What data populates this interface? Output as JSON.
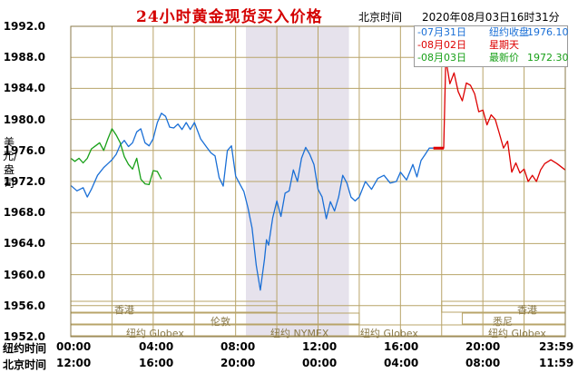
{
  "header": {
    "title": "24小时黄金现货买入价格",
    "beijing_label": "北京时间",
    "timestamp": "2020年08月03日16时31分"
  },
  "y_axis_label": "美元/盎司",
  "legend": [
    {
      "date": "-07月31日",
      "name": "纽约收盘",
      "value": "1976.10",
      "color": "#1a6fd6"
    },
    {
      "date": "-08月02日",
      "name": "星期天",
      "value": "",
      "color": "#dd0000"
    },
    {
      "date": "-08月03日",
      "name": "最新价",
      "value": "1972.30",
      "color": "#18a018"
    }
  ],
  "x_rows": [
    {
      "label": "纽约时间",
      "ticks": [
        "00:00",
        "04:00",
        "08:00",
        "12:00",
        "16:00",
        "20:00",
        "23:59"
      ]
    },
    {
      "label": "北京时间",
      "ticks": [
        "12:00",
        "16:00",
        "20:00",
        "00:00",
        "04:00",
        "08:00",
        "11:59"
      ]
    }
  ],
  "markets": {
    "hongkong_1": "香港",
    "london": "伦敦",
    "newyork_globex_1": "纽约 Globex",
    "newyork_nymex": "纽约 NYMEX",
    "newyork_globex_2": "纽约 Globex",
    "hongkong_2": "香港",
    "sydney": "悉尼",
    "newyork_globex_3": "纽约 Globex"
  },
  "chart_data": {
    "type": "line",
    "title": "24小时黄金现货买入价格",
    "ylabel": "美元/盎司",
    "x_unit": "hours (New York time)",
    "xlim": [
      0,
      24
    ],
    "ylim": [
      1952,
      1992
    ],
    "y_ticks": [
      1952.0,
      1956.0,
      1960.0,
      1964.0,
      1968.0,
      1972.0,
      1976.0,
      1980.0,
      1984.0,
      1988.0,
      1992.0
    ],
    "x_ticks": [
      "00:00",
      "04:00",
      "08:00",
      "12:00",
      "16:00",
      "20:00",
      "23:59"
    ],
    "grid": true,
    "shaded_range": [
      8.5,
      13.5
    ],
    "legend_position": "top-right",
    "series": [
      {
        "name": "07月31日",
        "color": "#1a6fd6",
        "x": [
          0.0,
          0.3,
          0.6,
          0.8,
          1.0,
          1.3,
          1.6,
          1.8,
          2.0,
          2.2,
          2.4,
          2.6,
          2.8,
          3.0,
          3.2,
          3.4,
          3.6,
          3.8,
          4.0,
          4.2,
          4.4,
          4.6,
          4.8,
          5.0,
          5.2,
          5.4,
          5.6,
          5.8,
          6.0,
          6.3,
          6.6,
          6.8,
          7.0,
          7.2,
          7.4,
          7.6,
          7.8,
          8.0,
          8.2,
          8.4,
          8.6,
          8.8,
          9.0,
          9.2,
          9.4,
          9.5,
          9.6,
          9.8,
          10.0,
          10.2,
          10.4,
          10.6,
          10.8,
          11.0,
          11.2,
          11.4,
          11.6,
          11.8,
          12.0,
          12.2,
          12.4,
          12.6,
          12.8,
          13.0,
          13.2,
          13.4,
          13.6,
          13.8,
          14.0,
          14.3,
          14.6,
          14.9,
          15.2,
          15.5,
          15.8,
          16.0,
          16.3,
          16.6,
          16.8,
          17.0,
          17.2,
          17.4,
          17.6
        ],
        "y": [
          1971.5,
          1970.8,
          1971.2,
          1970.0,
          1971.0,
          1972.8,
          1973.8,
          1974.3,
          1974.8,
          1975.5,
          1976.7,
          1977.3,
          1976.5,
          1977.0,
          1978.4,
          1978.8,
          1977.0,
          1976.6,
          1977.5,
          1979.6,
          1980.8,
          1980.4,
          1979.0,
          1978.9,
          1979.4,
          1978.7,
          1979.6,
          1978.7,
          1979.6,
          1977.5,
          1976.4,
          1975.7,
          1975.3,
          1972.5,
          1971.4,
          1976.0,
          1976.6,
          1972.7,
          1971.7,
          1970.7,
          1968.6,
          1966.0,
          1961.2,
          1958.0,
          1962.0,
          1964.5,
          1963.8,
          1967.3,
          1969.5,
          1967.5,
          1970.5,
          1970.8,
          1973.5,
          1972.0,
          1975.0,
          1976.4,
          1975.5,
          1974.2,
          1971.0,
          1970.0,
          1967.2,
          1969.4,
          1968.2,
          1970.0,
          1972.8,
          1971.8,
          1970.0,
          1969.5,
          1970.0,
          1972.0,
          1971.0,
          1972.4,
          1972.8,
          1971.8,
          1972.0,
          1973.2,
          1972.2,
          1974.2,
          1972.6,
          1974.7,
          1975.5,
          1976.3,
          1976.3
        ]
      },
      {
        "name": "08月02日",
        "color": "#dd0000",
        "x": [
          17.6,
          18.1,
          18.2,
          18.4,
          18.6,
          18.8,
          19.0,
          19.2,
          19.4,
          19.6,
          19.8,
          20.0,
          20.2,
          20.4,
          20.6,
          20.8,
          21.0,
          21.2,
          21.4,
          21.6,
          21.8,
          22.0,
          22.2,
          22.4,
          22.6,
          22.8,
          23.0,
          23.3,
          23.6,
          23.99
        ],
        "y": [
          1976.3,
          1976.3,
          1987.8,
          1984.6,
          1986.0,
          1983.6,
          1982.4,
          1984.7,
          1984.4,
          1983.3,
          1981.0,
          1981.2,
          1979.3,
          1980.6,
          1980.0,
          1978.2,
          1976.3,
          1977.2,
          1973.2,
          1974.4,
          1973.1,
          1973.6,
          1972.0,
          1972.8,
          1972.0,
          1973.5,
          1974.3,
          1974.8,
          1974.3,
          1973.5
        ]
      },
      {
        "name": "08月03日",
        "color": "#18a018",
        "x": [
          0.0,
          0.2,
          0.4,
          0.6,
          0.8,
          1.0,
          1.2,
          1.4,
          1.6,
          1.8,
          2.0,
          2.2,
          2.4,
          2.6,
          2.8,
          3.0,
          3.2,
          3.4,
          3.6,
          3.8,
          4.0,
          4.2,
          4.4
        ],
        "y": [
          1975.0,
          1974.6,
          1975.0,
          1974.4,
          1975.0,
          1976.2,
          1976.6,
          1977.0,
          1976.0,
          1977.5,
          1978.8,
          1978.0,
          1977.0,
          1975.2,
          1974.2,
          1973.6,
          1975.0,
          1972.3,
          1971.7,
          1971.6,
          1973.4,
          1973.3,
          1972.3
        ]
      }
    ]
  }
}
